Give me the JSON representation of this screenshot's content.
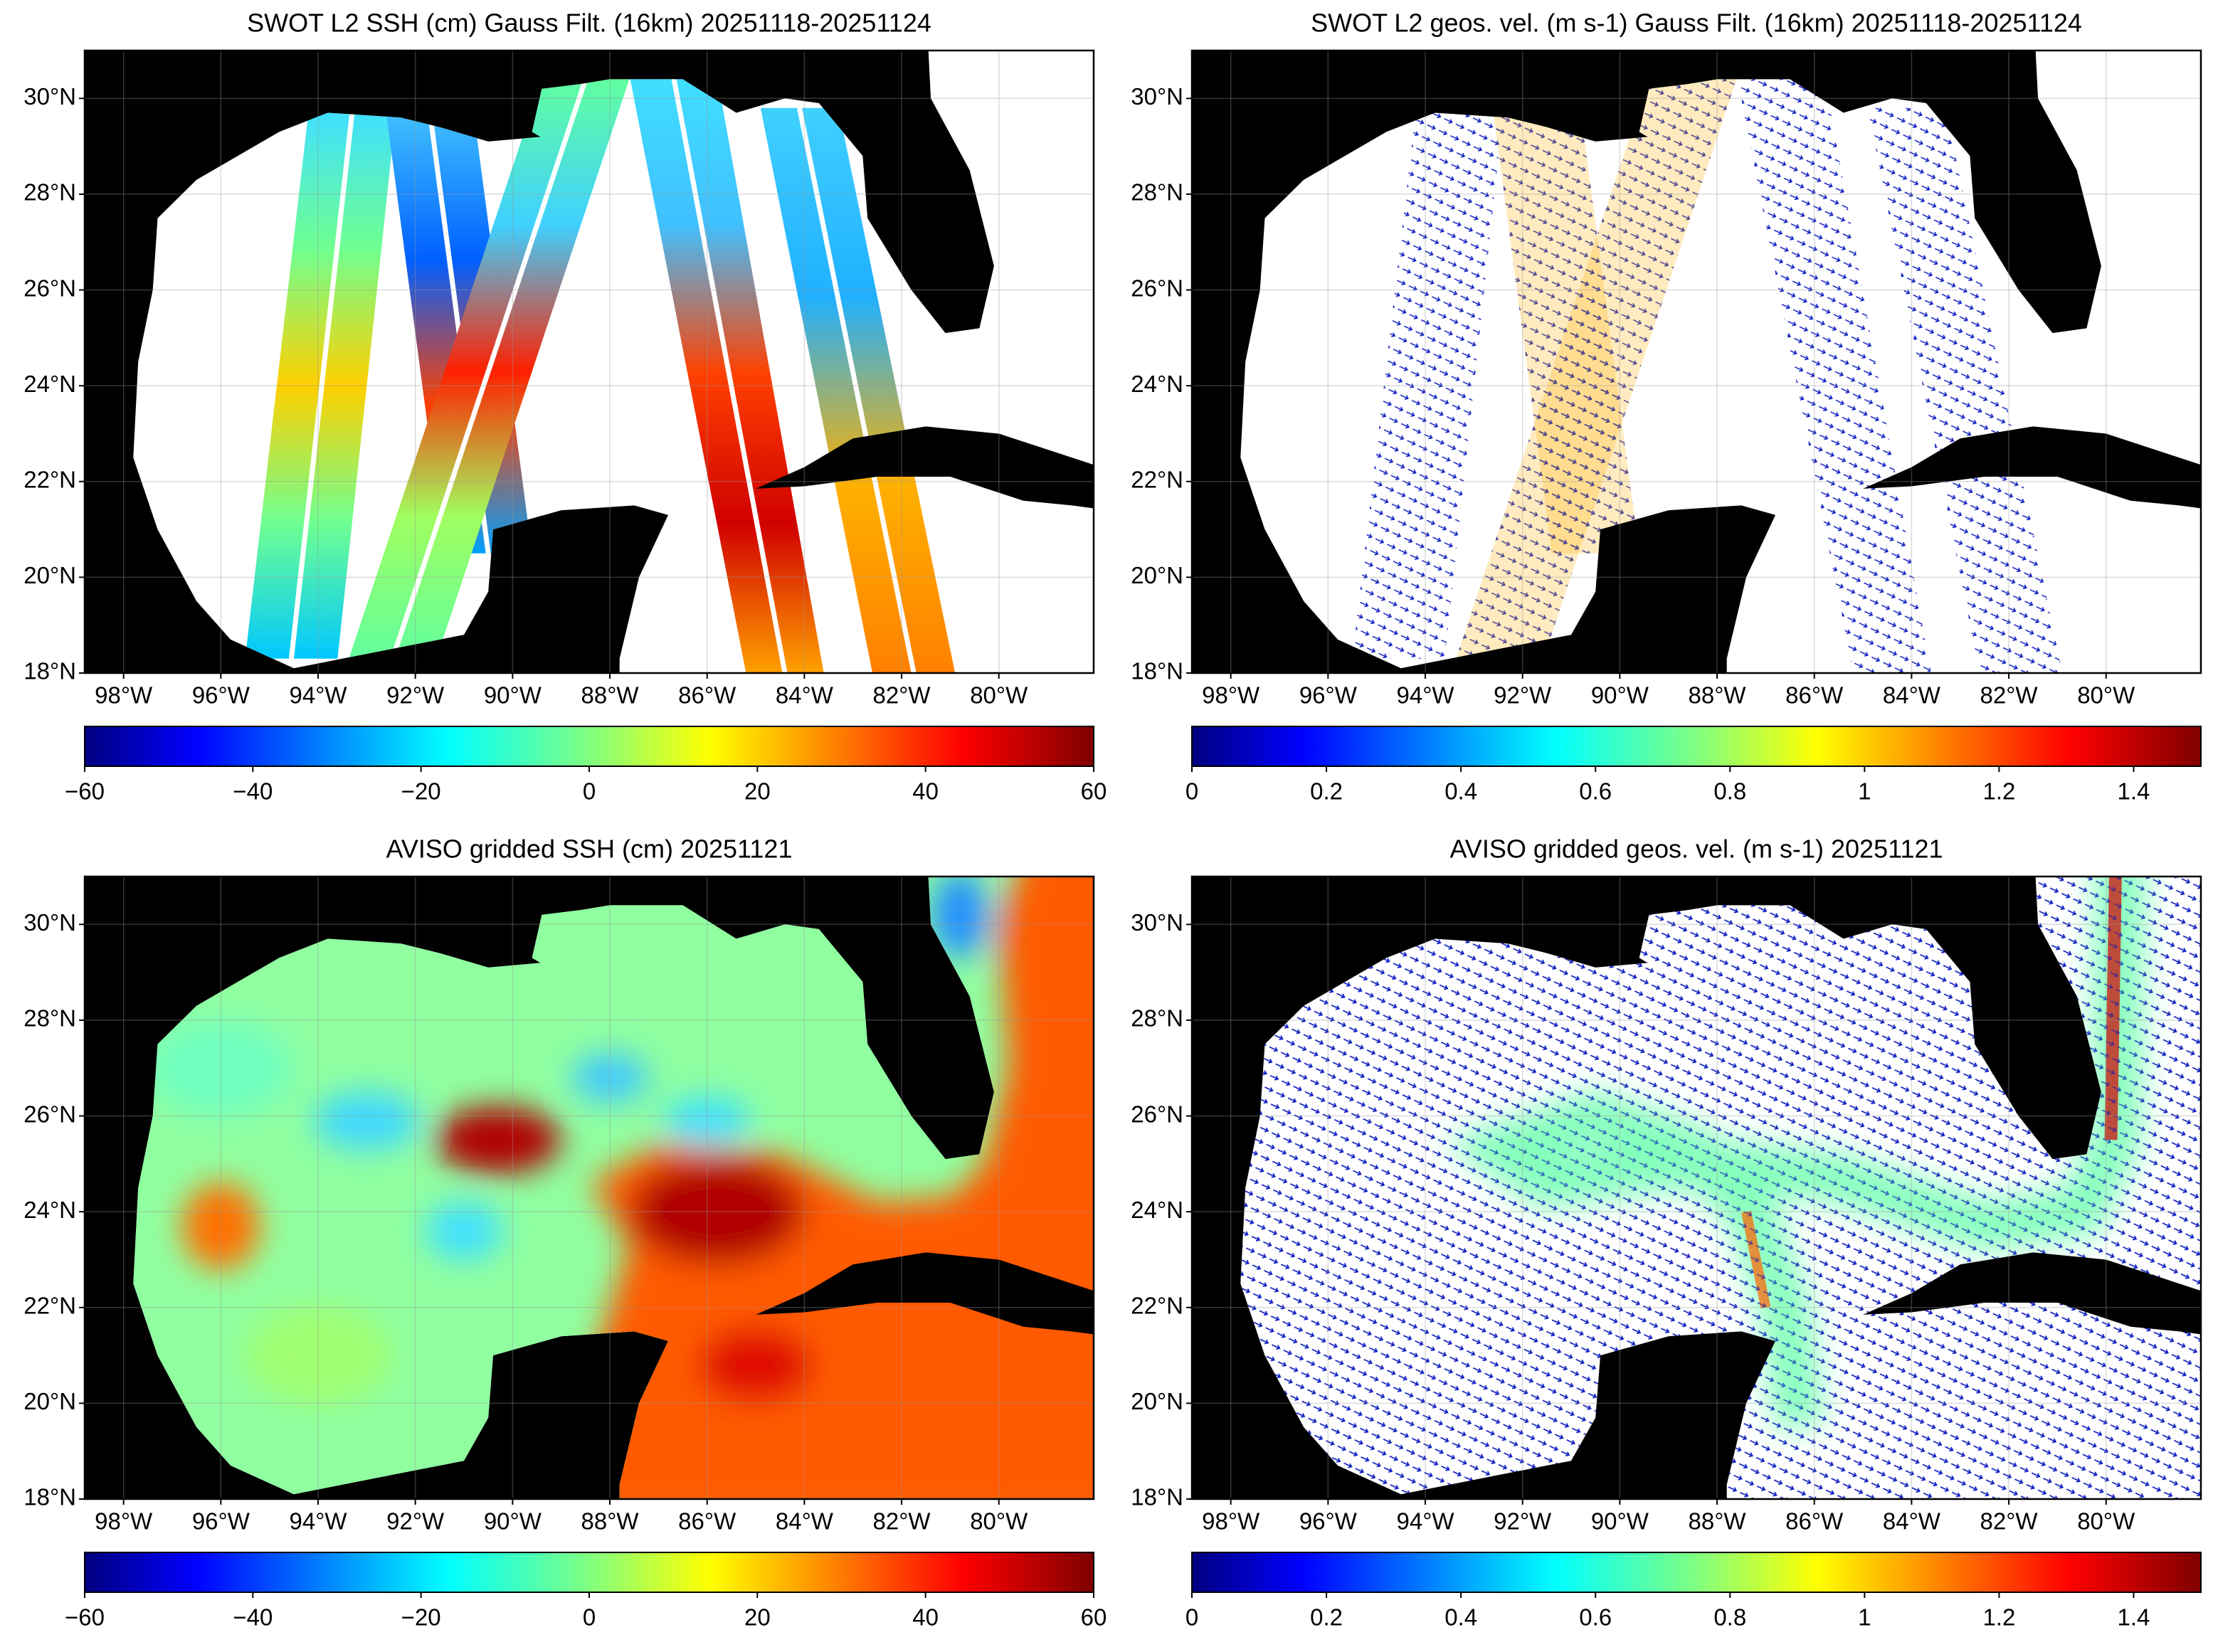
{
  "panels": [
    {
      "type": "swath-ssh",
      "title": "SWOT L2 SSH (cm) Gauss Filt. (16km) 20251118-20251124",
      "xlim": [
        -98.8,
        -78.05
      ],
      "ylim": [
        18,
        31
      ],
      "xticks": [
        {
          "value": -98,
          "label": "98°W"
        },
        {
          "value": -96,
          "label": "96°W"
        },
        {
          "value": -94,
          "label": "94°W"
        },
        {
          "value": -92,
          "label": "92°W"
        },
        {
          "value": -90,
          "label": "90°W"
        },
        {
          "value": -88,
          "label": "88°W"
        },
        {
          "value": -86,
          "label": "86°W"
        },
        {
          "value": -84,
          "label": "84°W"
        },
        {
          "value": -82,
          "label": "82°W"
        },
        {
          "value": -80,
          "label": "80°W"
        }
      ],
      "yticks": [
        {
          "value": 18,
          "label": "18°N"
        },
        {
          "value": 20,
          "label": "20°N"
        },
        {
          "value": 22,
          "label": "22°N"
        },
        {
          "value": 24,
          "label": "24°N"
        },
        {
          "value": 26,
          "label": "26°N"
        },
        {
          "value": 28,
          "label": "28°N"
        },
        {
          "value": 30,
          "label": "30°N"
        }
      ],
      "colorbar": {
        "colormap": "jet",
        "lim": [
          -60,
          60
        ],
        "ticks": [
          {
            "value": -60,
            "label": "−60"
          },
          {
            "value": -40,
            "label": "−40"
          },
          {
            "value": -20,
            "label": "−20"
          },
          0,
          20,
          40,
          60
        ]
      }
    },
    {
      "type": "swath-vel",
      "title": "SWOT L2 geos. vel. (m s-1) Gauss Filt. (16km) 20251118-20251124",
      "xlim": [
        -98.8,
        -78.05
      ],
      "ylim": [
        18,
        31
      ],
      "xticks": [
        {
          "value": -98,
          "label": "98°W"
        },
        {
          "value": -96,
          "label": "96°W"
        },
        {
          "value": -94,
          "label": "94°W"
        },
        {
          "value": -92,
          "label": "92°W"
        },
        {
          "value": -90,
          "label": "90°W"
        },
        {
          "value": -88,
          "label": "88°W"
        },
        {
          "value": -86,
          "label": "86°W"
        },
        {
          "value": -84,
          "label": "84°W"
        },
        {
          "value": -82,
          "label": "82°W"
        },
        {
          "value": -80,
          "label": "80°W"
        }
      ],
      "yticks": [
        {
          "value": 18,
          "label": "18°N"
        },
        {
          "value": 20,
          "label": "20°N"
        },
        {
          "value": 22,
          "label": "22°N"
        },
        {
          "value": 24,
          "label": "24°N"
        },
        {
          "value": 26,
          "label": "26°N"
        },
        {
          "value": 28,
          "label": "28°N"
        },
        {
          "value": 30,
          "label": "30°N"
        }
      ],
      "colorbar": {
        "colormap": "jet",
        "lim": [
          0,
          1.5
        ],
        "ticks": [
          0,
          0.2,
          0.4,
          0.6,
          0.8,
          1,
          1.2,
          1.4
        ]
      }
    },
    {
      "type": "gridded-ssh",
      "title": "AVISO gridded SSH (cm) 20251121",
      "xlim": [
        -98.8,
        -78.05
      ],
      "ylim": [
        18,
        31
      ],
      "xticks": [
        {
          "value": -98,
          "label": "98°W"
        },
        {
          "value": -96,
          "label": "96°W"
        },
        {
          "value": -94,
          "label": "94°W"
        },
        {
          "value": -92,
          "label": "92°W"
        },
        {
          "value": -90,
          "label": "90°W"
        },
        {
          "value": -88,
          "label": "88°W"
        },
        {
          "value": -86,
          "label": "86°W"
        },
        {
          "value": -84,
          "label": "84°W"
        },
        {
          "value": -82,
          "label": "82°W"
        },
        {
          "value": -80,
          "label": "80°W"
        }
      ],
      "yticks": [
        {
          "value": 18,
          "label": "18°N"
        },
        {
          "value": 20,
          "label": "20°N"
        },
        {
          "value": 22,
          "label": "22°N"
        },
        {
          "value": 24,
          "label": "24°N"
        },
        {
          "value": 26,
          "label": "26°N"
        },
        {
          "value": 28,
          "label": "28°N"
        },
        {
          "value": 30,
          "label": "30°N"
        }
      ],
      "colorbar": {
        "colormap": "jet",
        "lim": [
          -60,
          60
        ],
        "ticks": [
          {
            "value": -60,
            "label": "−60"
          },
          {
            "value": -40,
            "label": "−40"
          },
          {
            "value": -20,
            "label": "−20"
          },
          0,
          20,
          40,
          60
        ]
      }
    },
    {
      "type": "gridded-vel",
      "title": "AVISO gridded geos. vel. (m s-1)  20251121",
      "xlim": [
        -98.8,
        -78.05
      ],
      "ylim": [
        18,
        31
      ],
      "xticks": [
        {
          "value": -98,
          "label": "98°W"
        },
        {
          "value": -96,
          "label": "96°W"
        },
        {
          "value": -94,
          "label": "94°W"
        },
        {
          "value": -92,
          "label": "92°W"
        },
        {
          "value": -90,
          "label": "90°W"
        },
        {
          "value": -88,
          "label": "88°W"
        },
        {
          "value": -86,
          "label": "86°W"
        },
        {
          "value": -84,
          "label": "84°W"
        },
        {
          "value": -82,
          "label": "82°W"
        },
        {
          "value": -80,
          "label": "80°W"
        }
      ],
      "yticks": [
        {
          "value": 18,
          "label": "18°N"
        },
        {
          "value": 20,
          "label": "20°N"
        },
        {
          "value": 22,
          "label": "22°N"
        },
        {
          "value": 24,
          "label": "24°N"
        },
        {
          "value": 26,
          "label": "26°N"
        },
        {
          "value": 28,
          "label": "28°N"
        },
        {
          "value": 30,
          "label": "30°N"
        }
      ],
      "colorbar": {
        "colormap": "jet",
        "lim": [
          0,
          1.5
        ],
        "ticks": [
          0,
          0.2,
          0.4,
          0.6,
          0.8,
          1,
          1.2,
          1.4
        ]
      }
    }
  ]
}
